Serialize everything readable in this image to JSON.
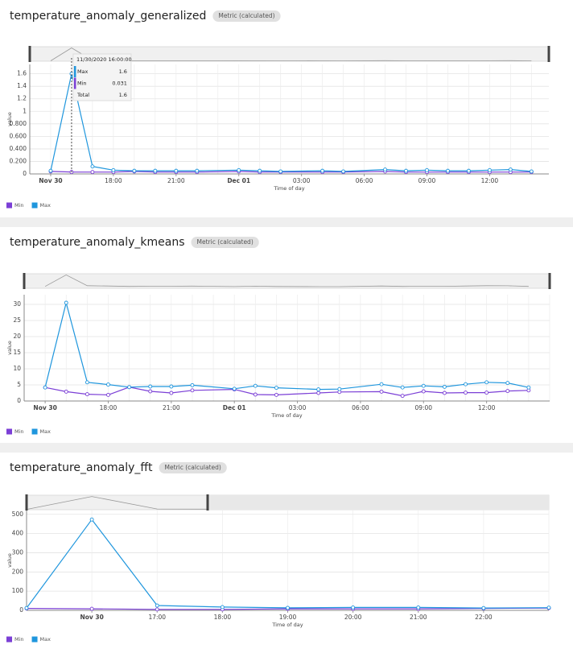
{
  "chart_data": [
    {
      "type": "line",
      "title": "temperature_anomaly_generalized",
      "tag": "Metric (calculated)",
      "x_label": "Time of day",
      "y_label": "value",
      "grid": true,
      "legend": "bottom-left",
      "x": [
        "2020-11-30T15:00",
        "2020-11-30T16:00",
        "2020-11-30T17:00",
        "2020-11-30T18:00",
        "2020-11-30T19:00",
        "2020-11-30T20:00",
        "2020-11-30T21:00",
        "2020-11-30T22:00",
        "2020-12-01T00:00",
        "2020-12-01T01:00",
        "2020-12-01T02:00",
        "2020-12-01T04:00",
        "2020-12-01T05:00",
        "2020-12-01T07:00",
        "2020-12-01T08:00",
        "2020-12-01T09:00",
        "2020-12-01T10:00",
        "2020-12-01T11:00",
        "2020-12-01T12:00",
        "2020-12-01T13:00",
        "2020-12-01T14:00"
      ],
      "xlim": [
        "2020-11-30T14:00",
        "2020-12-01T14:50"
      ],
      "xticks": [
        {
          "value": "2020-11-30T15:00",
          "label": "Nov 30"
        },
        {
          "value": "2020-11-30T18:00",
          "label": "18:00"
        },
        {
          "value": "2020-11-30T21:00",
          "label": "21:00"
        },
        {
          "value": "2020-12-01T00:00",
          "label": "Dec 01"
        },
        {
          "value": "2020-12-01T03:00",
          "label": "03:00"
        },
        {
          "value": "2020-12-01T06:00",
          "label": "06:00"
        },
        {
          "value": "2020-12-01T09:00",
          "label": "09:00"
        },
        {
          "value": "2020-12-01T12:00",
          "label": "12:00"
        }
      ],
      "ylim": [
        0,
        1.75
      ],
      "yticks": [
        0,
        {
          "value": 0.2,
          "label": "0.200"
        },
        {
          "value": 0.4,
          "label": "0.400"
        },
        {
          "value": 0.6,
          "label": "0.600"
        },
        {
          "value": 0.8,
          "label": "0.800"
        },
        1,
        1.2,
        1.4,
        1.6
      ],
      "series": [
        {
          "name": "Min",
          "color": "#7b3fd6",
          "values": [
            0.04,
            0.031,
            0.03,
            0.03,
            0.04,
            0.03,
            0.03,
            0.03,
            0.04,
            0.03,
            0.03,
            0.03,
            0.03,
            0.04,
            0.03,
            0.03,
            0.03,
            0.03,
            0.03,
            0.03,
            0.03
          ]
        },
        {
          "name": "Max",
          "color": "#1f96dd",
          "values": [
            0.05,
            1.6,
            0.12,
            0.06,
            0.05,
            0.05,
            0.05,
            0.05,
            0.06,
            0.05,
            0.04,
            0.05,
            0.04,
            0.07,
            0.05,
            0.06,
            0.05,
            0.05,
            0.06,
            0.07,
            0.04
          ]
        }
      ],
      "tooltip": {
        "title": "11/30/2020 16:00:00",
        "rows": [
          {
            "label": "Max",
            "value": 1.6
          },
          {
            "label": "Min",
            "value": 0.031
          },
          {
            "label": "Total",
            "value": 1.6
          }
        ]
      }
    },
    {
      "type": "line",
      "title": "temperature_anomaly_kmeans",
      "tag": "Metric (calculated)",
      "x_label": "Time of day",
      "y_label": "value",
      "grid": true,
      "legend": "bottom-left",
      "x": [
        "2020-11-30T15:00",
        "2020-11-30T16:00",
        "2020-11-30T17:00",
        "2020-11-30T18:00",
        "2020-11-30T19:00",
        "2020-11-30T20:00",
        "2020-11-30T21:00",
        "2020-11-30T22:00",
        "2020-12-01T00:00",
        "2020-12-01T01:00",
        "2020-12-01T02:00",
        "2020-12-01T04:00",
        "2020-12-01T05:00",
        "2020-12-01T07:00",
        "2020-12-01T08:00",
        "2020-12-01T09:00",
        "2020-12-01T10:00",
        "2020-12-01T11:00",
        "2020-12-01T12:00",
        "2020-12-01T13:00",
        "2020-12-01T14:00"
      ],
      "xlim": [
        "2020-11-30T14:00",
        "2020-12-01T15:00"
      ],
      "xticks": [
        {
          "value": "2020-11-30T15:00",
          "label": "Nov 30"
        },
        {
          "value": "2020-11-30T18:00",
          "label": "18:00"
        },
        {
          "value": "2020-11-30T21:00",
          "label": "21:00"
        },
        {
          "value": "2020-12-01T00:00",
          "label": "Dec 01"
        },
        {
          "value": "2020-12-01T03:00",
          "label": "03:00"
        },
        {
          "value": "2020-12-01T06:00",
          "label": "06:00"
        },
        {
          "value": "2020-12-01T09:00",
          "label": "09:00"
        },
        {
          "value": "2020-12-01T12:00",
          "label": "12:00"
        }
      ],
      "ylim": [
        0,
        33
      ],
      "yticks": [
        0,
        5,
        10,
        15,
        20,
        25,
        30
      ],
      "series": [
        {
          "name": "Min",
          "color": "#7b3fd6",
          "values": [
            4.2,
            2.9,
            2.1,
            1.9,
            4.3,
            3.0,
            2.5,
            3.3,
            3.6,
            2.0,
            1.9,
            2.5,
            2.8,
            2.9,
            1.6,
            3.0,
            2.5,
            2.6,
            2.6,
            3.1,
            3.3
          ]
        },
        {
          "name": "Max",
          "color": "#1f96dd",
          "values": [
            4.2,
            30.5,
            5.8,
            5.1,
            4.3,
            4.5,
            4.5,
            4.9,
            3.8,
            4.7,
            4.1,
            3.6,
            3.7,
            5.2,
            4.2,
            4.7,
            4.4,
            5.2,
            5.8,
            5.6,
            4.2
          ]
        }
      ]
    },
    {
      "type": "line",
      "title": "temperature_anomaly_fft",
      "tag": "Metric (calculated)",
      "x_label": "Time of day",
      "y_label": "value",
      "grid": true,
      "legend": "bottom-left",
      "x": [
        "2020-11-30T15:00",
        "2020-11-30T16:00",
        "2020-11-30T17:00",
        "2020-11-30T18:00",
        "2020-11-30T19:00",
        "2020-11-30T20:00",
        "2020-11-30T21:00",
        "2020-11-30T22:00",
        "2020-11-30T23:00"
      ],
      "xlim": [
        "2020-11-30T15:00",
        "2020-11-30T23:00"
      ],
      "xticks": [
        {
          "value": "2020-11-30T16:00",
          "label": "Nov 30"
        },
        {
          "value": "2020-11-30T17:00",
          "label": "17:00"
        },
        {
          "value": "2020-11-30T18:00",
          "label": "18:00"
        },
        {
          "value": "2020-11-30T19:00",
          "label": "19:00"
        },
        {
          "value": "2020-11-30T20:00",
          "label": "20:00"
        },
        {
          "value": "2020-11-30T21:00",
          "label": "21:00"
        },
        {
          "value": "2020-11-30T22:00",
          "label": "22:00"
        }
      ],
      "ylim": [
        0,
        520
      ],
      "yticks": [
        0,
        100,
        200,
        300,
        400,
        500
      ],
      "series": [
        {
          "name": "Min",
          "color": "#7b3fd6",
          "values": [
            10,
            8,
            5,
            5,
            8,
            8,
            8,
            10,
            12
          ]
        },
        {
          "name": "Max",
          "color": "#1f96dd",
          "values": [
            12,
            473,
            25,
            17,
            13,
            15,
            15,
            12,
            14
          ]
        }
      ]
    }
  ]
}
